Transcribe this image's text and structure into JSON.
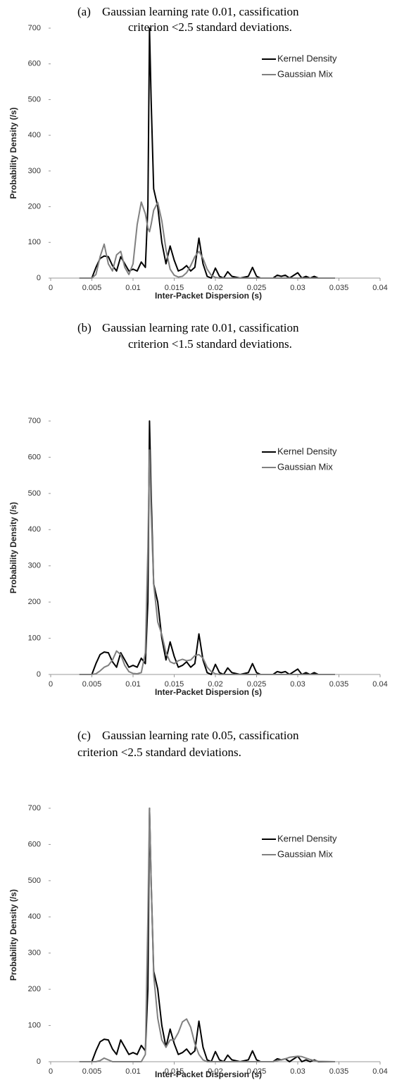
{
  "chart_data": [
    {
      "type": "line",
      "label": "(a)",
      "title_lines": [
        "Gaussian learning rate 0.01, cassification",
        "criterion <2.5 standard deviations."
      ],
      "xlabel": "Inter-Packet Dispersion (s)",
      "ylabel": "Probability Density (/s)",
      "x": [
        0.0035,
        0.005,
        0.0055,
        0.006,
        0.0065,
        0.007,
        0.0075,
        0.008,
        0.0085,
        0.009,
        0.0095,
        0.01,
        0.0105,
        0.011,
        0.0115,
        0.0118,
        0.012,
        0.0122,
        0.0125,
        0.013,
        0.0135,
        0.014,
        0.0145,
        0.015,
        0.0155,
        0.016,
        0.0165,
        0.017,
        0.0175,
        0.018,
        0.0185,
        0.019,
        0.0195,
        0.02,
        0.0205,
        0.021,
        0.0215,
        0.022,
        0.023,
        0.024,
        0.0245,
        0.025,
        0.0255,
        0.027,
        0.0275,
        0.028,
        0.0285,
        0.029,
        0.03,
        0.0305,
        0.031,
        0.0315,
        0.032,
        0.0325,
        0.0345
      ],
      "series": [
        {
          "name": "Kernel Density",
          "color": "#000000",
          "values": [
            0,
            0,
            30,
            55,
            62,
            60,
            35,
            20,
            60,
            40,
            20,
            25,
            20,
            45,
            30,
            200,
            700,
            500,
            250,
            200,
            100,
            40,
            90,
            50,
            20,
            25,
            35,
            20,
            30,
            112,
            40,
            5,
            0,
            28,
            5,
            0,
            18,
            5,
            0,
            5,
            30,
            5,
            0,
            0,
            8,
            5,
            8,
            0,
            15,
            0,
            5,
            0,
            5,
            0,
            0
          ]
        },
        {
          "name": "Gaussian Mix",
          "color": "#808080",
          "values": [
            0,
            0,
            10,
            60,
            95,
            40,
            20,
            65,
            75,
            30,
            10,
            40,
            150,
            213,
            180,
            140,
            130,
            150,
            190,
            212,
            160,
            80,
            25,
            8,
            3,
            5,
            15,
            35,
            60,
            75,
            55,
            25,
            8,
            2,
            0,
            0,
            0,
            0,
            0,
            0,
            0,
            0,
            0,
            0,
            0,
            0,
            0,
            0,
            0,
            0,
            0,
            0,
            0,
            0,
            0
          ]
        }
      ],
      "xlim": [
        0,
        0.04
      ],
      "xticks": [
        0,
        0.005,
        0.01,
        0.015,
        0.02,
        0.025,
        0.03,
        0.035,
        0.04
      ],
      "ylim": [
        0,
        700
      ],
      "yticks": [
        0,
        100,
        200,
        300,
        400,
        500,
        600,
        700
      ],
      "legend": "upper-right"
    },
    {
      "type": "line",
      "label": "(b)",
      "title_lines": [
        "Gaussian learning rate 0.01, cassification",
        "criterion <1.5 standard deviations."
      ],
      "xlabel": "Inter-Packet Dispersion (s)",
      "ylabel": "Probability Density (/s)",
      "x": [
        0.0035,
        0.005,
        0.0055,
        0.006,
        0.0065,
        0.007,
        0.0075,
        0.008,
        0.0085,
        0.009,
        0.0095,
        0.01,
        0.0105,
        0.011,
        0.0115,
        0.0118,
        0.012,
        0.0122,
        0.0125,
        0.013,
        0.0135,
        0.014,
        0.0145,
        0.015,
        0.0155,
        0.016,
        0.0165,
        0.017,
        0.0175,
        0.018,
        0.0185,
        0.019,
        0.0195,
        0.02,
        0.0205,
        0.021,
        0.0215,
        0.022,
        0.023,
        0.024,
        0.0245,
        0.025,
        0.0255,
        0.027,
        0.0275,
        0.028,
        0.0285,
        0.029,
        0.03,
        0.0305,
        0.031,
        0.0315,
        0.032,
        0.0325,
        0.0345
      ],
      "series": [
        {
          "name": "Kernel Density",
          "color": "#000000",
          "values": [
            0,
            0,
            30,
            55,
            62,
            60,
            35,
            20,
            60,
            40,
            20,
            25,
            20,
            45,
            30,
            200,
            700,
            500,
            250,
            200,
            100,
            40,
            90,
            50,
            20,
            25,
            35,
            20,
            30,
            112,
            40,
            5,
            0,
            28,
            5,
            0,
            18,
            5,
            0,
            5,
            30,
            5,
            0,
            0,
            8,
            5,
            8,
            0,
            15,
            0,
            5,
            0,
            5,
            0,
            0
          ]
        },
        {
          "name": "Gaussian Mix",
          "color": "#808080",
          "values": [
            0,
            0,
            2,
            10,
            20,
            25,
            40,
            65,
            55,
            25,
            8,
            3,
            2,
            5,
            60,
            350,
            620,
            450,
            250,
            145,
            110,
            60,
            35,
            30,
            38,
            42,
            38,
            40,
            52,
            55,
            45,
            20,
            8,
            2,
            0,
            0,
            0,
            0,
            0,
            0,
            0,
            0,
            0,
            0,
            0,
            0,
            0,
            0,
            0,
            0,
            0,
            0,
            0,
            0,
            0
          ]
        }
      ],
      "xlim": [
        0,
        0.04
      ],
      "xticks": [
        0,
        0.005,
        0.01,
        0.015,
        0.02,
        0.025,
        0.03,
        0.035,
        0.04
      ],
      "ylim": [
        0,
        700
      ],
      "yticks": [
        0,
        100,
        200,
        300,
        400,
        500,
        600,
        700
      ],
      "legend": "upper-right"
    },
    {
      "type": "line",
      "label": "(c)",
      "title_lines": [
        "Gaussian learning rate 0.05, cassification",
        "criterion <2.5 standard deviations."
      ],
      "xlabel": "Inter-Packet Dispersion (s)",
      "ylabel": "Probability Density (/s)",
      "x": [
        0.0035,
        0.005,
        0.0055,
        0.006,
        0.0065,
        0.007,
        0.0075,
        0.008,
        0.0085,
        0.009,
        0.0095,
        0.01,
        0.0105,
        0.011,
        0.0115,
        0.0118,
        0.012,
        0.0122,
        0.0125,
        0.013,
        0.0135,
        0.014,
        0.0145,
        0.015,
        0.0155,
        0.016,
        0.0165,
        0.017,
        0.0175,
        0.018,
        0.0185,
        0.019,
        0.0195,
        0.02,
        0.0205,
        0.021,
        0.0215,
        0.022,
        0.023,
        0.024,
        0.0245,
        0.025,
        0.0255,
        0.027,
        0.0275,
        0.028,
        0.0285,
        0.029,
        0.03,
        0.0305,
        0.031,
        0.0315,
        0.032,
        0.0325,
        0.0345
      ],
      "series": [
        {
          "name": "Kernel Density",
          "color": "#000000",
          "values": [
            0,
            0,
            30,
            55,
            62,
            60,
            35,
            20,
            60,
            40,
            20,
            25,
            20,
            45,
            30,
            200,
            700,
            500,
            250,
            200,
            100,
            40,
            90,
            50,
            20,
            25,
            35,
            20,
            30,
            112,
            40,
            5,
            0,
            28,
            5,
            0,
            18,
            5,
            0,
            5,
            30,
            5,
            0,
            0,
            8,
            5,
            8,
            0,
            15,
            0,
            5,
            0,
            5,
            0,
            0
          ]
        },
        {
          "name": "Gaussian Mix",
          "color": "#808080",
          "values": [
            0,
            0,
            0,
            3,
            10,
            5,
            0,
            0,
            0,
            0,
            0,
            0,
            0,
            0,
            20,
            400,
            700,
            500,
            240,
            120,
            60,
            40,
            60,
            60,
            80,
            110,
            118,
            95,
            50,
            20,
            5,
            0,
            0,
            0,
            0,
            0,
            0,
            0,
            0,
            0,
            0,
            0,
            0,
            0,
            3,
            5,
            8,
            12,
            15,
            14,
            10,
            6,
            3,
            1,
            0
          ]
        }
      ],
      "xlim": [
        0,
        0.04
      ],
      "xticks": [
        0,
        0.005,
        0.01,
        0.015,
        0.02,
        0.025,
        0.03,
        0.035,
        0.04
      ],
      "ylim": [
        0,
        700
      ],
      "yticks": [
        0,
        100,
        200,
        300,
        400,
        500,
        600,
        700
      ],
      "legend": "upper-right"
    }
  ]
}
